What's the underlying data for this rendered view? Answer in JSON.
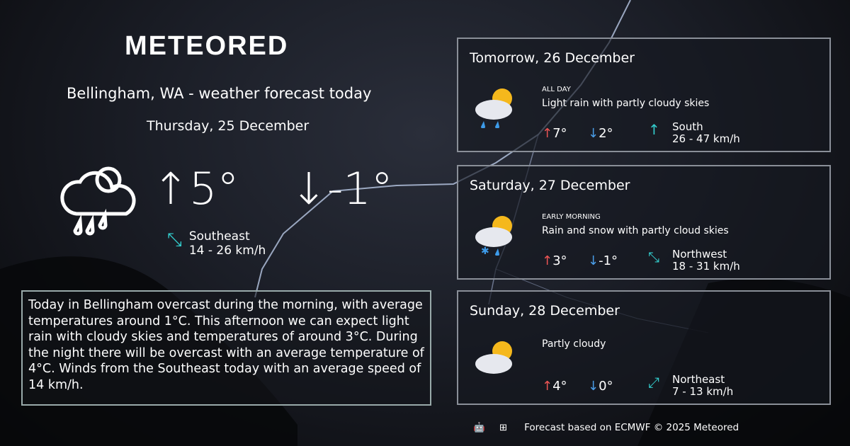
{
  "logo": "METEORED",
  "today": {
    "title": "Bellingham, WA - weather forecast today",
    "date": "Thursday, 25 December",
    "max": "5°",
    "min": "-1°",
    "max_arrow": "↑",
    "min_arrow": "↓",
    "wind_dir": "Southeast",
    "wind_speed": "14 - 26 km/h",
    "icon": "rain-partly-cloudy-icon",
    "description": "Today in Bellingham overcast during the morning, with average temperatures around 1°C. This afternoon we can expect light rain with cloudy skies and temperatures of around 3°C. During the night there will be overcast with an average temperature of 4°C. Winds from the Southeast today with an average speed of 14 km/h."
  },
  "forecast": [
    {
      "day": "Tomorrow, 26 December",
      "period": "ALL DAY",
      "text": "Light rain with partly cloudy skies",
      "max": "7°",
      "min": "2°",
      "wind_dir": "South",
      "wind_speed": "26 - 47 km/h",
      "icon": "light-rain-sun-icon"
    },
    {
      "day": "Saturday, 27 December",
      "period": "EARLY MORNING",
      "text": "Rain and snow with partly cloud skies",
      "max": "3°",
      "min": "-1°",
      "wind_dir": "Northwest",
      "wind_speed": "18 - 31 km/h",
      "icon": "rain-snow-sun-icon"
    },
    {
      "day": "Sunday, 28 December",
      "period": "",
      "text": "Partly cloudy",
      "max": "4°",
      "min": "0°",
      "wind_dir": "Northeast",
      "wind_speed": "7 - 13 km/h",
      "icon": "partly-cloudy-icon"
    }
  ],
  "footer": {
    "text": "Forecast based on ECMWF © 2025 Meteored",
    "icons": [
      "android-icon",
      "apple-icon",
      "windows-icon"
    ]
  },
  "colors": {
    "up": "#ee5555",
    "down": "#4a9de8",
    "wind": "#33cccc"
  }
}
